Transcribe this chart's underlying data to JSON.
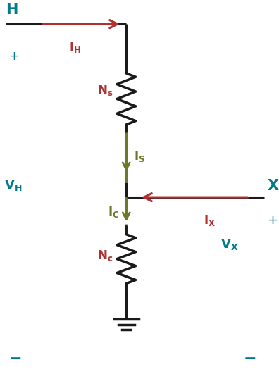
{
  "bg_color": "#ffffff",
  "teal_color": "#007B8A",
  "red_color": "#B03030",
  "green_color": "#6B7A2A",
  "black_color": "#1a1a1a",
  "figsize": [
    3.96,
    5.31
  ],
  "dpi": 100,
  "xlim": [
    0,
    9.5
  ],
  "ylim": [
    0,
    12.7
  ]
}
